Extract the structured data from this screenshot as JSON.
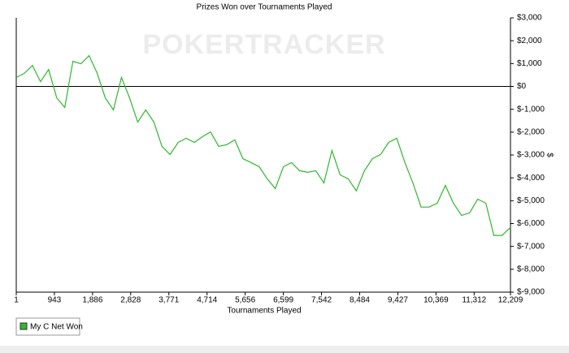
{
  "chart_data": {
    "type": "line",
    "title": "Prizes Won over Tournaments Played",
    "watermark": "POKERTRACKER",
    "x_label": "Tournaments Played",
    "y_label": "$",
    "x": [
      1,
      200,
      400,
      600,
      800,
      1000,
      1200,
      1400,
      1600,
      1800,
      2000,
      2200,
      2400,
      2600,
      2800,
      3000,
      3200,
      3400,
      3600,
      3800,
      4000,
      4200,
      4400,
      4600,
      4800,
      5000,
      5200,
      5400,
      5600,
      5800,
      6000,
      6200,
      6400,
      6600,
      6800,
      7000,
      7200,
      7400,
      7600,
      7800,
      8000,
      8200,
      8400,
      8600,
      8800,
      9000,
      9200,
      9400,
      9600,
      9800,
      10000,
      10200,
      10400,
      10600,
      10800,
      11000,
      11200,
      11400,
      11600,
      11800,
      12000,
      12209
    ],
    "series": [
      {
        "name": "My C Net Won",
        "color": "#2eb82e",
        "values": [
          390,
          570,
          920,
          210,
          740,
          -500,
          -920,
          1100,
          990,
          1350,
          570,
          -500,
          -1030,
          390,
          -500,
          -1560,
          -1030,
          -1560,
          -2620,
          -2980,
          -2450,
          -2270,
          -2450,
          -2200,
          -1990,
          -2620,
          -2550,
          -2340,
          -3160,
          -3330,
          -3510,
          -4040,
          -4470,
          -3510,
          -3330,
          -3690,
          -3760,
          -3690,
          -4220,
          -2800,
          -3870,
          -4040,
          -4570,
          -3690,
          -3160,
          -2980,
          -2450,
          -2270,
          -3330,
          -4220,
          -5280,
          -5280,
          -5110,
          -4330,
          -5110,
          -5640,
          -5530,
          -4930,
          -5110,
          -6520,
          -6520,
          -6170
        ]
      }
    ],
    "xlim": [
      1,
      12209
    ],
    "xticks": [
      1,
      943,
      {
        "value": 1886,
        "label": "1,886"
      },
      {
        "value": 2828,
        "label": "2,828"
      },
      {
        "value": 3771,
        "label": "3,771"
      },
      {
        "value": 4714,
        "label": "4,714"
      },
      {
        "value": 5656,
        "label": "5,656"
      },
      {
        "value": 6599,
        "label": "6,599"
      },
      {
        "value": 7542,
        "label": "7,542"
      },
      {
        "value": 8484,
        "label": "8,484"
      },
      {
        "value": 9427,
        "label": "9,427"
      },
      {
        "value": 10369,
        "label": "10,369"
      },
      {
        "value": 11312,
        "label": "11,312"
      },
      {
        "value": 12209,
        "label": "12,209"
      }
    ],
    "ylim": [
      -9000,
      3000
    ],
    "yticks": [
      {
        "value": 3000,
        "label": "$3,000"
      },
      {
        "value": 2000,
        "label": "$2,000"
      },
      {
        "value": 1000,
        "label": "$1,000"
      },
      {
        "value": 0,
        "label": "$0"
      },
      {
        "value": -1000,
        "label": "$-1,000"
      },
      {
        "value": -2000,
        "label": "$-2,000"
      },
      {
        "value": -3000,
        "label": "$-3,000"
      },
      {
        "value": -4000,
        "label": "$-4,000"
      },
      {
        "value": -5000,
        "label": "$-5,000"
      },
      {
        "value": -6000,
        "label": "$-6,000"
      },
      {
        "value": -7000,
        "label": "$-7,000"
      },
      {
        "value": -8000,
        "label": "$-8,000"
      },
      {
        "value": -9000,
        "label": "$-9,000"
      }
    ],
    "legend": "bottom-left"
  }
}
